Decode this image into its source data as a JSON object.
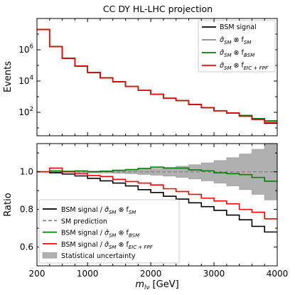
{
  "chart_data": {
    "title": "CC DY HL-LHC projection",
    "type": "line",
    "xlabel_main": "m",
    "xlabel_sub": "lν",
    "xlabel_unit": "[GeV]",
    "xlim": [
      200,
      4000
    ],
    "xticks": [
      "200",
      "1000",
      "2000",
      "3000",
      "4000"
    ],
    "xtick_values": [
      200,
      1000,
      2000,
      3000,
      4000
    ],
    "bins": [
      200,
      400,
      600,
      800,
      1000,
      1200,
      1400,
      1600,
      1800,
      2000,
      2200,
      2400,
      2600,
      2800,
      3000,
      3200,
      3400,
      3600,
      3800,
      4000
    ],
    "top": {
      "ylabel": "Events",
      "yscale": "log",
      "ylim_exp": [
        0.5,
        8.0
      ],
      "yticks": [
        {
          "base": "10",
          "exp": "2",
          "value_exp": 2
        },
        {
          "base": "10",
          "exp": "4",
          "value_exp": 4
        },
        {
          "base": "10",
          "exp": "6",
          "value_exp": 6
        }
      ],
      "legend": [
        {
          "label": "BSM signal",
          "color": "#000000"
        },
        {
          "label": "σ̂SM ⊗ fSM",
          "main": "σ̂",
          "sub": "SM",
          "mid": " ⊗ f",
          "sub2": "SM",
          "color": "#888888"
        },
        {
          "label": "σ̂SM ⊗ fBSM",
          "main": "σ̂",
          "sub": "SM",
          "mid": " ⊗ f",
          "sub2": "BSM",
          "color": "#008000"
        },
        {
          "label": "σ̂SM ⊗ fEIC+FPF",
          "main": "σ̂",
          "sub": "SM",
          "mid": " ⊗ f",
          "sub2": "EIC + FPF",
          "color": "#ff0000"
        }
      ],
      "series_exp": {
        "bsm": [
          7.3,
          6.2,
          5.45,
          4.95,
          4.55,
          4.2,
          3.95,
          3.65,
          3.4,
          3.15,
          2.9,
          2.75,
          2.5,
          2.3,
          2.1,
          1.95,
          1.75,
          1.55,
          1.3
        ],
        "sm": [
          7.3,
          6.2,
          5.45,
          4.95,
          4.55,
          4.2,
          3.95,
          3.65,
          3.4,
          3.15,
          2.9,
          2.75,
          2.5,
          2.3,
          2.1,
          1.95,
          1.8,
          1.6,
          1.45
        ],
        "bsm_pdf": [
          7.3,
          6.2,
          5.45,
          4.95,
          4.55,
          4.2,
          3.95,
          3.65,
          3.4,
          3.15,
          2.9,
          2.75,
          2.5,
          2.3,
          2.1,
          1.95,
          1.8,
          1.6,
          1.45
        ],
        "eic_fpf": [
          7.3,
          6.2,
          5.45,
          4.95,
          4.55,
          4.2,
          3.95,
          3.65,
          3.4,
          3.15,
          2.9,
          2.75,
          2.5,
          2.3,
          2.1,
          1.95,
          1.75,
          1.55,
          1.35
        ]
      }
    },
    "bottom": {
      "ylabel": "Ratio",
      "ylim": [
        0.5,
        1.15
      ],
      "yticks": [
        "0.6",
        "0.8",
        "1.0"
      ],
      "ytick_values": [
        0.6,
        0.8,
        1.0
      ],
      "legend": [
        {
          "label": "BSM signal / σ̂SM ⊗ fSM",
          "pre": "BSM signal / ",
          "main": "σ̂",
          "sub": "SM",
          "mid": " ⊗ f",
          "sub2": "SM",
          "color": "#000000",
          "kind": "line"
        },
        {
          "label": "SM prediction",
          "pre": "SM prediction",
          "color": "#888888",
          "kind": "dashed"
        },
        {
          "label": "BSM signal / σ̂SM ⊗ fBSM",
          "pre": "BSM signal / ",
          "main": "σ̂",
          "sub": "SM",
          "mid": " ⊗ f",
          "sub2": "BSM",
          "color": "#008000",
          "kind": "line"
        },
        {
          "label": "BSM signal / σ̂SM ⊗ fEIC+FPF",
          "pre": "BSM signal / ",
          "main": "σ̂",
          "sub": "SM",
          "mid": " ⊗ f",
          "sub2": "EIC + FPF",
          "color": "#ff0000",
          "kind": "line"
        },
        {
          "label": "Statistical uncertainty",
          "pre": "Statistical uncertainty",
          "color": "#b0b0b0",
          "kind": "patch"
        }
      ],
      "uncertainty": [
        0.002,
        0.002,
        0.003,
        0.004,
        0.005,
        0.006,
        0.008,
        0.01,
        0.014,
        0.018,
        0.023,
        0.03,
        0.038,
        0.048,
        0.06,
        0.075,
        0.095,
        0.12,
        0.15
      ],
      "sm_prediction": 1.0,
      "series": {
        "bsm_over_sm": [
          1.0,
          0.995,
          0.988,
          0.978,
          0.965,
          0.952,
          0.94,
          0.925,
          0.905,
          0.89,
          0.87,
          0.855,
          0.835,
          0.815,
          0.795,
          0.77,
          0.745,
          0.71,
          0.68
        ],
        "bsm_over_bsm": [
          1.0,
          1.005,
          1.003,
          1.005,
          1.0,
          1.003,
          1.008,
          1.012,
          1.018,
          1.025,
          1.02,
          1.02,
          1.01,
          1.005,
          0.995,
          0.99,
          0.985,
          0.97,
          0.95
        ],
        "bsm_over_eic": [
          1.0,
          1.02,
          1.0,
          0.99,
          0.98,
          0.975,
          0.96,
          0.948,
          0.94,
          0.93,
          0.91,
          0.895,
          0.88,
          0.86,
          0.845,
          0.83,
          0.8,
          0.785,
          0.75
        ]
      }
    }
  }
}
